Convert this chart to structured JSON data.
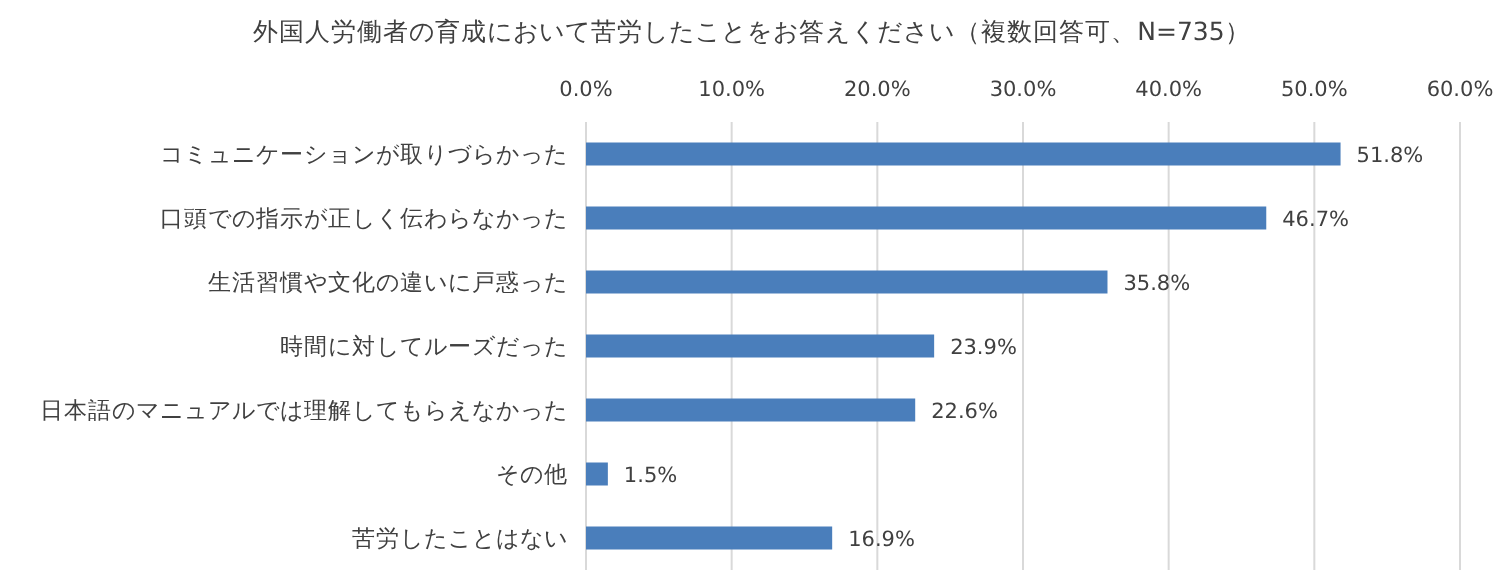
{
  "chart_data": {
    "type": "bar",
    "orientation": "horizontal",
    "title": "外国人労働者の育成において苦労したことをお答えください（複数回答可、N=735）",
    "categories": [
      "コミュニケーションが取りづらかった",
      "口頭での指示が正しく伝わらなかった",
      "生活習慣や文化の違いに戸惑った",
      "時間に対してルーズだった",
      "日本語のマニュアルでは理解してもらえなかった",
      "その他",
      "苦労したことはない"
    ],
    "values": [
      51.8,
      46.7,
      35.8,
      23.9,
      22.6,
      1.5,
      16.9
    ],
    "value_labels": [
      "51.8%",
      "46.7%",
      "35.8%",
      "23.9%",
      "22.6%",
      "1.5%",
      "16.9%"
    ],
    "color": "#4a7ebb",
    "xlim": [
      0,
      60
    ],
    "xticks": [
      {
        "value": 0,
        "label": "0.0%"
      },
      {
        "value": 10,
        "label": "10.0%"
      },
      {
        "value": 20,
        "label": "20.0%"
      },
      {
        "value": 30,
        "label": "30.0%"
      },
      {
        "value": 40,
        "label": "40.0%"
      },
      {
        "value": 50,
        "label": "50.0%"
      },
      {
        "value": 60,
        "label": "60.0%"
      }
    ],
    "grid": "x"
  }
}
